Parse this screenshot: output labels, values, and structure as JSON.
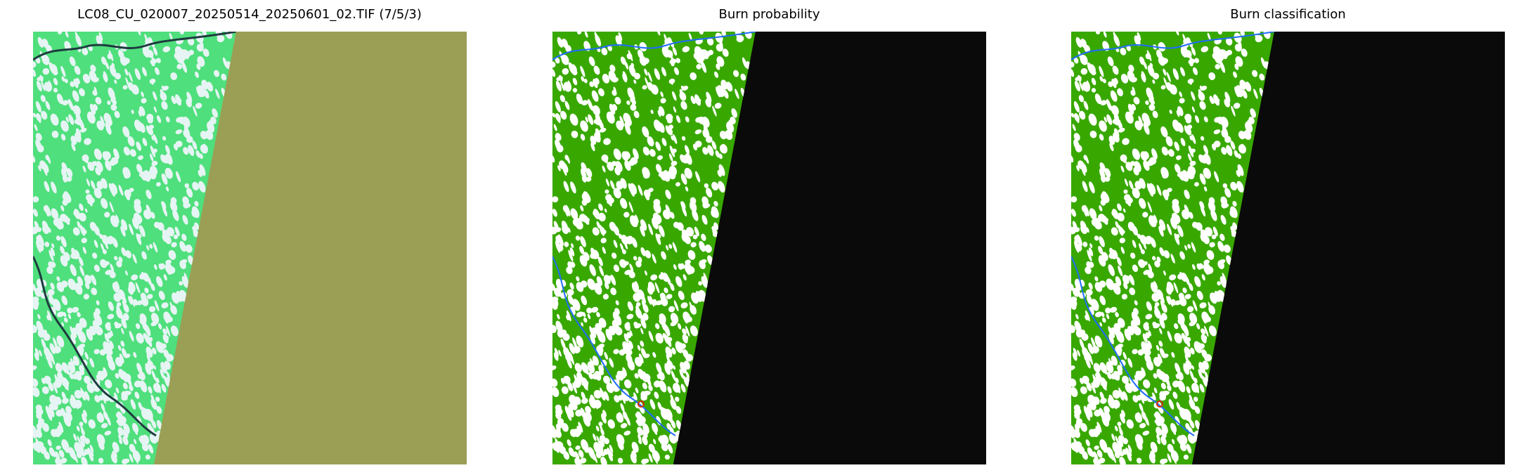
{
  "panels": [
    {
      "title": "LC08_CU_020007_20250514_20250601_02.TIF (7/5/3)",
      "kind": "composite",
      "colors": {
        "valid": "#4fdf7c",
        "nodata": "#9a9f55",
        "water": "#1e3b3f",
        "cloud": "#e6f4f4"
      }
    },
    {
      "title": "Burn probability",
      "kind": "probability",
      "colors": {
        "valid": "#38a800",
        "nodata": "#0a0a0a",
        "water": "#1f6cff",
        "cloud": "#ffffff",
        "burn": "#d42a00"
      }
    },
    {
      "title": "Burn classification",
      "kind": "classification",
      "colors": {
        "valid": "#38a800",
        "nodata": "#0a0a0a",
        "water": "#1f6cff",
        "cloud": "#ffffff",
        "burn": "#d42a00"
      }
    }
  ]
}
